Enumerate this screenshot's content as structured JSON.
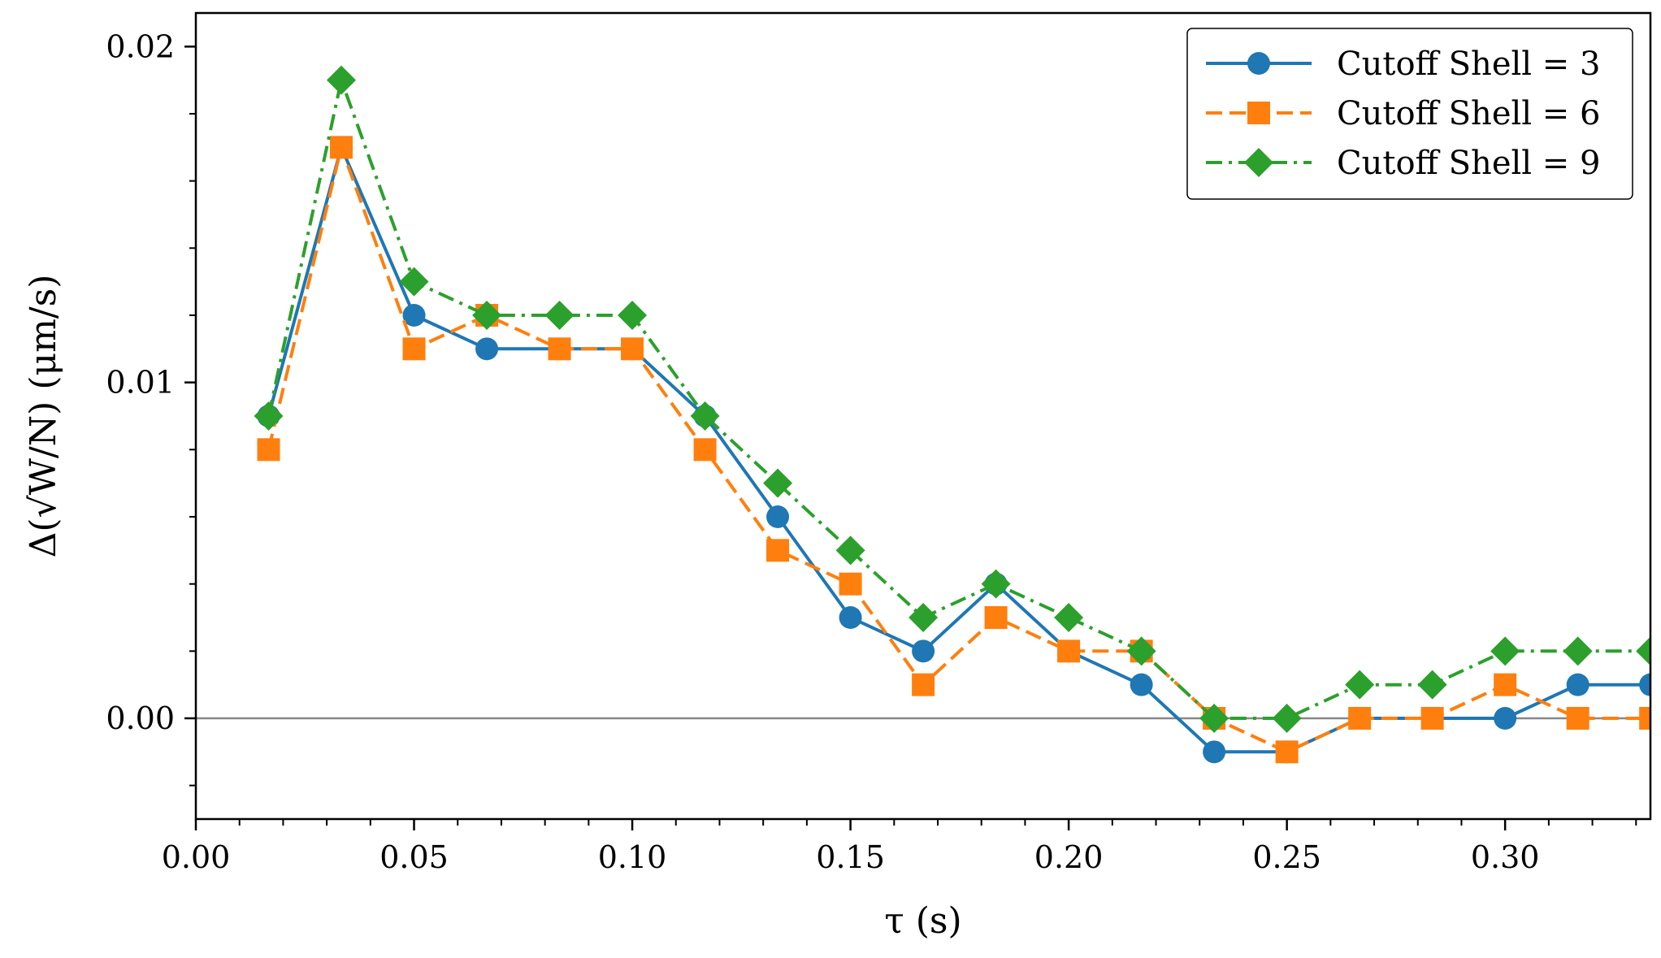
{
  "chart_data": {
    "type": "line",
    "xlabel": "τ (s)",
    "ylabel": "Δ(√W/N) (μm/s)",
    "xlim": [
      0.0,
      0.3333
    ],
    "ylim": [
      -0.003,
      0.021
    ],
    "x_ticks": [
      0.0,
      0.05,
      0.1,
      0.15,
      0.2,
      0.25,
      0.3
    ],
    "x_tick_labels": [
      "0.00",
      "0.05",
      "0.10",
      "0.15",
      "0.20",
      "0.25",
      "0.30"
    ],
    "y_ticks": [
      0.0,
      0.01,
      0.02
    ],
    "y_tick_labels": [
      "0.00",
      "0.01",
      "0.02"
    ],
    "x": [
      0.01667,
      0.03333,
      0.05,
      0.06667,
      0.08333,
      0.1,
      0.11667,
      0.13333,
      0.15,
      0.16667,
      0.18333,
      0.2,
      0.21667,
      0.23333,
      0.25,
      0.26667,
      0.28333,
      0.3,
      0.31667,
      0.33333
    ],
    "series": [
      {
        "name": "Cutoff Shell = 3",
        "color": "#1f77b4",
        "marker": "circle",
        "linestyle": "solid",
        "values": [
          0.009,
          0.017,
          0.012,
          0.011,
          0.011,
          0.011,
          0.009,
          0.006,
          0.003,
          0.002,
          0.004,
          0.002,
          0.001,
          -0.001,
          -0.001,
          0.0,
          0.0,
          0.0,
          0.001,
          0.001
        ]
      },
      {
        "name": "Cutoff Shell = 6",
        "color": "#ff7f0e",
        "marker": "square",
        "linestyle": "dashed",
        "values": [
          0.008,
          0.017,
          0.011,
          0.012,
          0.011,
          0.011,
          0.008,
          0.005,
          0.004,
          0.001,
          0.003,
          0.002,
          0.002,
          0.0,
          -0.001,
          0.0,
          0.0,
          0.001,
          0.0,
          0.0
        ]
      },
      {
        "name": "Cutoff Shell = 9",
        "color": "#2ca02c",
        "marker": "diamond",
        "linestyle": "dashdot",
        "values": [
          0.009,
          0.019,
          0.013,
          0.012,
          0.012,
          0.012,
          0.009,
          0.007,
          0.005,
          0.003,
          0.004,
          0.003,
          0.002,
          0.0,
          0.0,
          0.001,
          0.001,
          0.002,
          0.002,
          0.002
        ]
      }
    ],
    "reference_line": 0.0,
    "legend_position": "top-right"
  }
}
